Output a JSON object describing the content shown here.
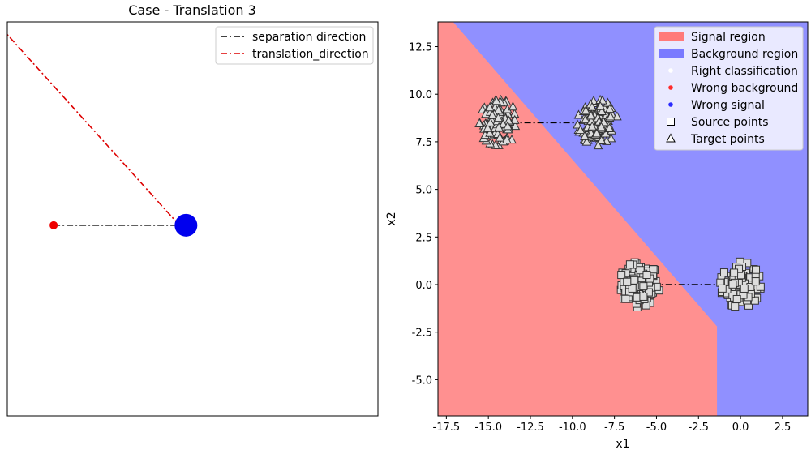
{
  "colors": {
    "signal_region": "#ff9090",
    "background_region": "#9090ff",
    "signal_legend": "#ff7a7a",
    "background_legend": "#7a7aff",
    "wrong_background": "#ff2a2a",
    "wrong_signal": "#2a2aff",
    "separation": "#000000",
    "translation": "#dd0000",
    "left_point_red": "#ee0000",
    "left_point_blue": "#0000ee",
    "marker_fill": "#dddddd",
    "marker_edge": "#333333"
  },
  "chart_data": [
    {
      "type": "line",
      "title": "Case - Translation 3",
      "axes_visible": false,
      "legend_position": "top-right",
      "series": [
        {
          "name": "separation direction",
          "style": "dash-dot",
          "color": "#000000",
          "points": [
            [
              -1.0,
              0.0
            ],
            [
              1.0,
              0.0
            ]
          ]
        },
        {
          "name": "translation_direction",
          "style": "dash-dot",
          "color": "#dd0000",
          "points": [
            [
              0.9,
              0.0
            ],
            [
              -1.7,
              3.0
            ]
          ]
        }
      ],
      "markers": [
        {
          "label": "",
          "x": -1.0,
          "y": 0.0,
          "color": "#ee0000",
          "size": "small"
        },
        {
          "label": "",
          "x": 1.0,
          "y": 0.0,
          "color": "#0000ee",
          "size": "large"
        }
      ],
      "xlim": [
        -1.7,
        3.9
      ],
      "ylim": [
        -3.0,
        3.2
      ]
    },
    {
      "type": "scatter",
      "title": "",
      "xlabel": "x1",
      "ylabel": "x2",
      "xlim": [
        -18.0,
        4.0
      ],
      "ylim": [
        -6.9,
        13.8
      ],
      "xticks": [
        "-17.5",
        "-15.0",
        "-12.5",
        "-10.0",
        "-7.5",
        "-5.0",
        "-2.5",
        "0.0",
        "2.5"
      ],
      "xtick_values": [
        -17.5,
        -15.0,
        -12.5,
        -10.0,
        -7.5,
        -5.0,
        -2.5,
        0.0,
        2.5
      ],
      "yticks": [
        "-5.0",
        "-2.5",
        "0.0",
        "2.5",
        "5.0",
        "7.5",
        "10.0",
        "12.5"
      ],
      "ytick_values": [
        -5.0,
        -2.5,
        0.0,
        2.5,
        5.0,
        7.5,
        10.0,
        12.5
      ],
      "grid": false,
      "legend_position": "top-right",
      "legend": [
        {
          "label": "Signal region",
          "kind": "patch",
          "color": "#ff7a7a"
        },
        {
          "label": "Background region",
          "kind": "patch",
          "color": "#7a7aff"
        },
        {
          "label": "Right classification",
          "kind": "dot",
          "color": "#ffffff"
        },
        {
          "label": "Wrong background",
          "kind": "dot",
          "color": "#ff2a2a"
        },
        {
          "label": "Wrong signal",
          "kind": "dot",
          "color": "#2a2aff"
        },
        {
          "label": "Source points",
          "kind": "square",
          "color": "#ffffff"
        },
        {
          "label": "Target points",
          "kind": "triangle",
          "color": "#ffffff"
        }
      ],
      "signal_region_boundary": [
        [
          -17.1,
          13.8
        ],
        [
          -1.4,
          -2.2
        ],
        [
          -1.4,
          -6.9
        ]
      ],
      "clusters": [
        {
          "name": "Source points",
          "marker": "square",
          "center": [
            -6.0,
            0.0
          ],
          "spread": 1.2,
          "count": 130
        },
        {
          "name": "Source points",
          "marker": "square",
          "center": [
            0.0,
            0.0
          ],
          "spread": 1.2,
          "count": 130
        },
        {
          "name": "Target points",
          "marker": "triangle",
          "center": [
            -14.4,
            8.5
          ],
          "spread": 1.2,
          "count": 130
        },
        {
          "name": "Target points",
          "marker": "triangle",
          "center": [
            -8.5,
            8.5
          ],
          "spread": 1.2,
          "count": 130
        }
      ],
      "separation_segments": [
        {
          "from": [
            -6.0,
            0.0
          ],
          "to": [
            0.0,
            0.0
          ]
        },
        {
          "from": [
            -14.4,
            8.5
          ],
          "to": [
            -8.5,
            8.5
          ]
        }
      ]
    }
  ]
}
